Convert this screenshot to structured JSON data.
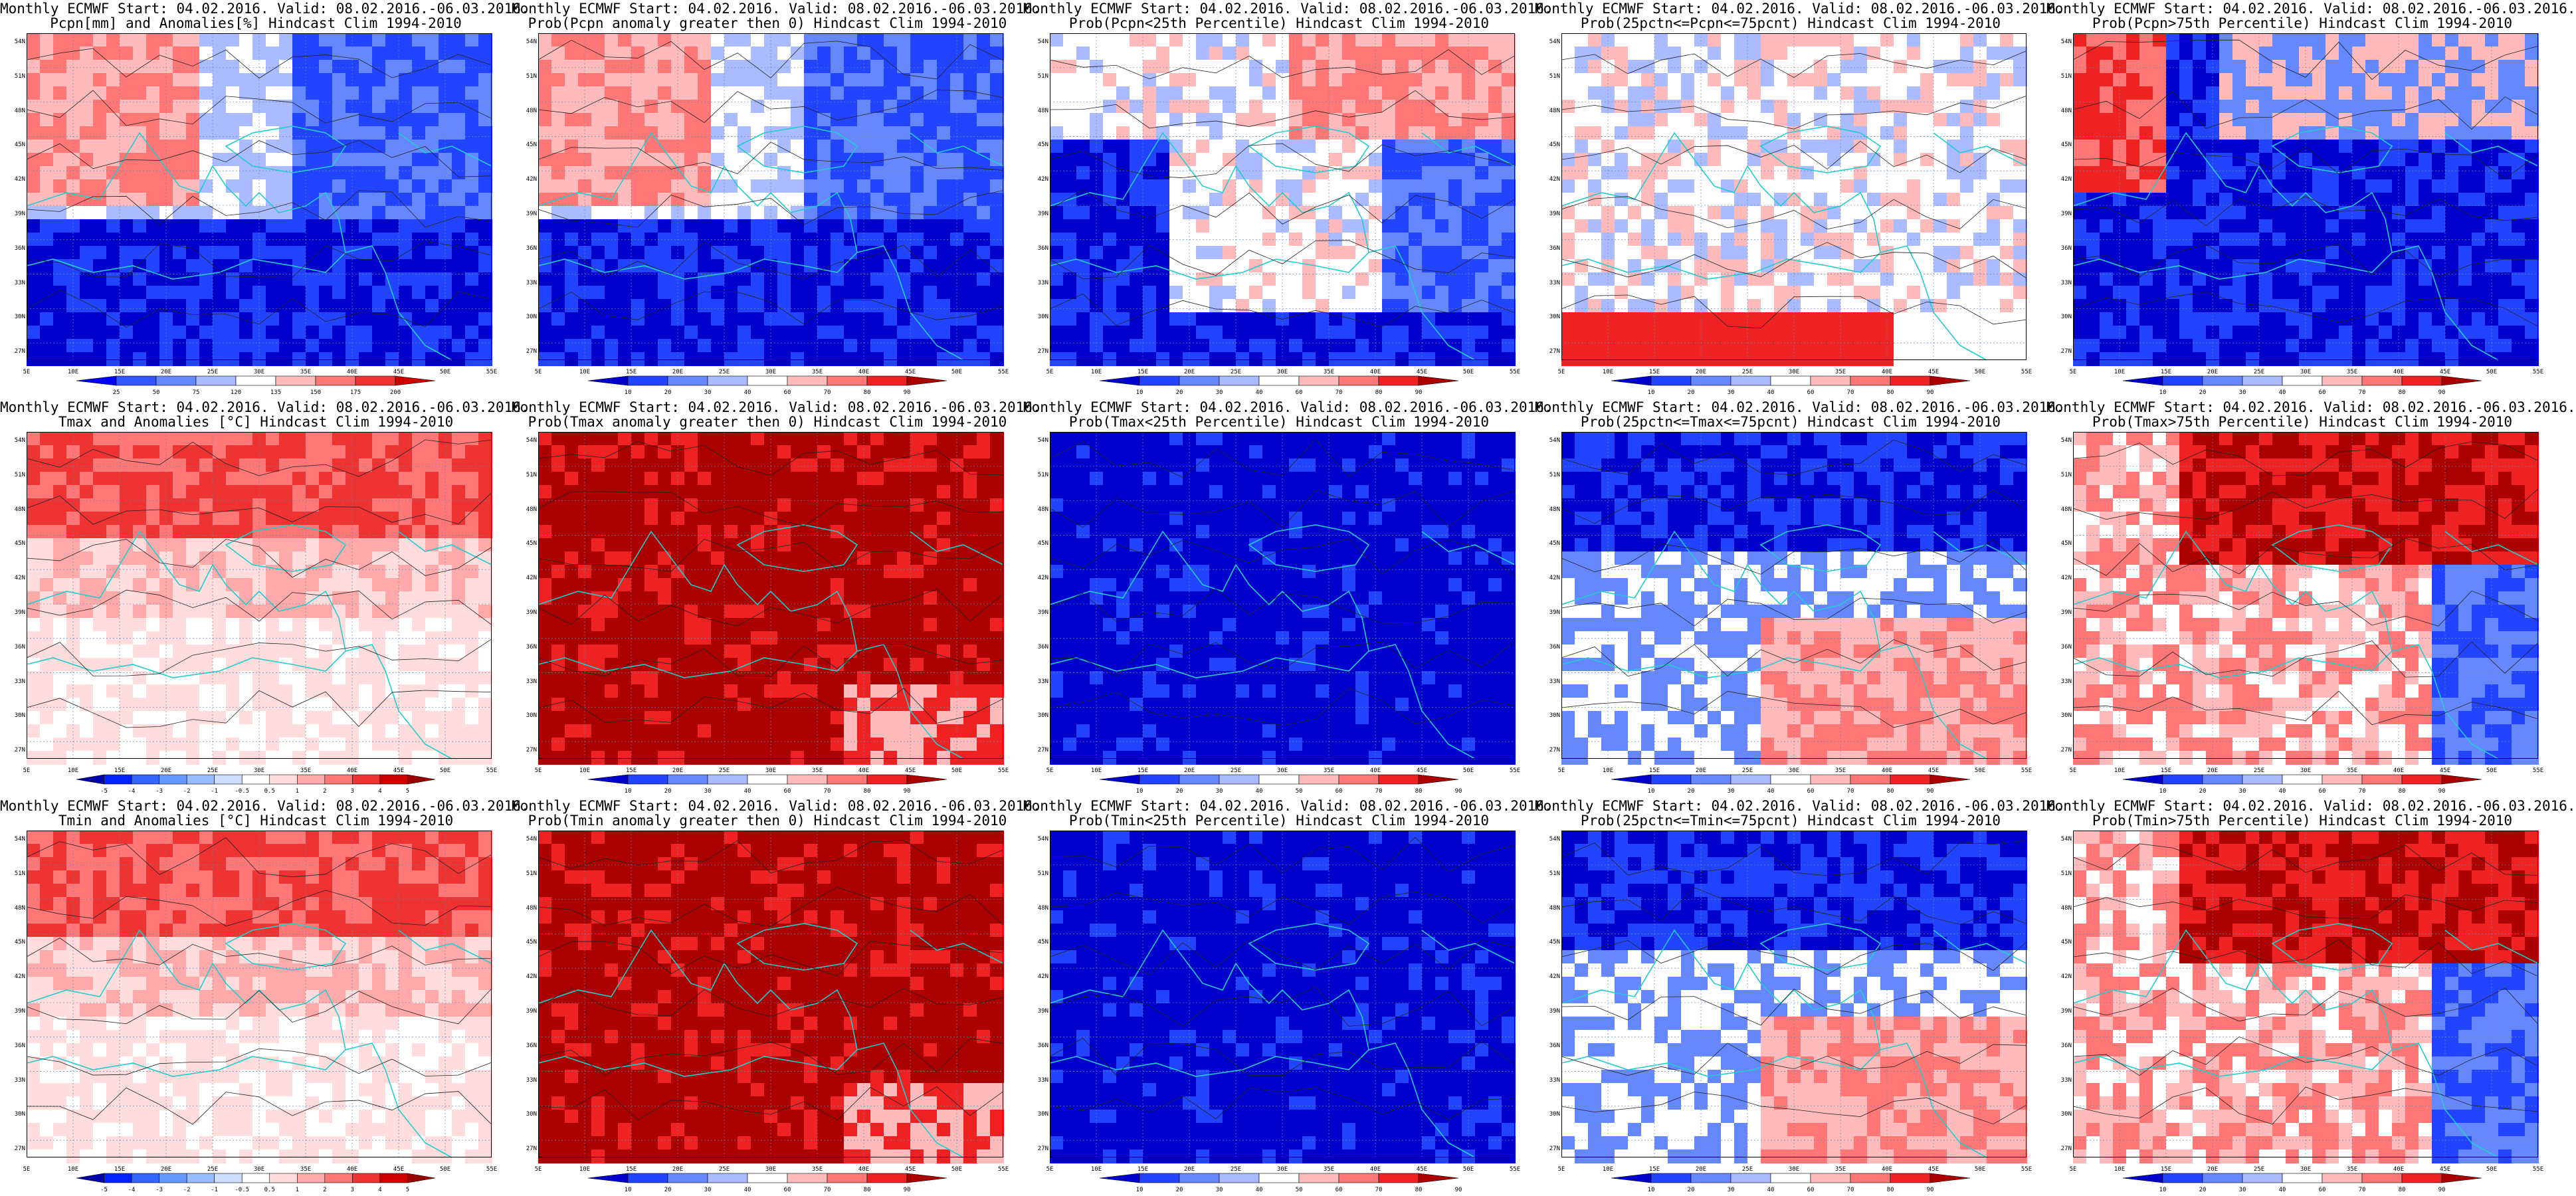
{
  "panels": [
    {
      "title1": "Monthly ECMWF Start: 04.02.2016. Valid: 08.02.2016.-06.03.2016.",
      "title2": "Pcpn[mm] and Anomalies[%] Hindcast Clim 1994-2010",
      "field": "pcpn_anom",
      "colorbar_ticks": [
        "25",
        "50",
        "75",
        "120",
        "135",
        "150",
        "175",
        "200"
      ],
      "colorbar_colors": [
        "#0000ff",
        "#3355ff",
        "#6688ff",
        "#aabbff",
        "#ffffff",
        "#ffbbbb",
        "#ff7777",
        "#ee3333",
        "#cc0000"
      ]
    },
    {
      "title1": "Monthly ECMWF Start: 04.02.2016. Valid: 08.02.2016.-06.03.2016.",
      "title2": "Prob(Pcpn anomaly greater then 0) Hindcast Clim 1994-2010",
      "field": "pcpn_gt0",
      "colorbar_ticks": [
        "10",
        "20",
        "30",
        "40",
        "60",
        "70",
        "80",
        "90"
      ],
      "colorbar_colors": [
        "#0000cc",
        "#2244ff",
        "#6688ff",
        "#aabbff",
        "#ffffff",
        "#ffbbbb",
        "#ff7777",
        "#ee2222",
        "#aa0000"
      ]
    },
    {
      "title1": "Monthly ECMWF Start: 04.02.2016. Valid: 08.02.2016.-06.03.2016.",
      "title2": "Prob(Pcpn<25th Percentile) Hindcast Clim 1994-2010",
      "field": "pcpn_lt25",
      "colorbar_ticks": [
        "10",
        "20",
        "30",
        "40",
        "60",
        "70",
        "80",
        "90"
      ],
      "colorbar_colors": [
        "#0000cc",
        "#2244ff",
        "#6688ff",
        "#aabbff",
        "#ffffff",
        "#ffbbbb",
        "#ff7777",
        "#ee2222",
        "#aa0000"
      ]
    },
    {
      "title1": "Monthly ECMWF Start: 04.02.2016. Valid: 08.02.2016.-06.03.2016.",
      "title2": "Prob(25pctn<=Pcpn<=75pcnt) Hindcast Clim 1994-2010",
      "field": "pcpn_mid",
      "colorbar_ticks": [
        "10",
        "20",
        "30",
        "40",
        "60",
        "70",
        "80",
        "90"
      ],
      "colorbar_colors": [
        "#0000cc",
        "#2244ff",
        "#6688ff",
        "#aabbff",
        "#ffffff",
        "#ffbbbb",
        "#ff7777",
        "#ee2222",
        "#aa0000"
      ]
    },
    {
      "title1": "Monthly ECMWF Start: 04.02.2016. Valid: 08.02.2016.-06.03.2016.",
      "title2": "Prob(Pcpn>75th Percentile) Hindcast Clim 1994-2010",
      "field": "pcpn_gt75",
      "colorbar_ticks": [
        "10",
        "20",
        "30",
        "40",
        "60",
        "70",
        "80",
        "90"
      ],
      "colorbar_colors": [
        "#0000cc",
        "#2244ff",
        "#6688ff",
        "#aabbff",
        "#ffffff",
        "#ffbbbb",
        "#ff7777",
        "#ee2222",
        "#aa0000"
      ]
    },
    {
      "title1": "Monthly ECMWF Start: 04.02.2016. Valid: 08.02.2016.-06.03.2016.",
      "title2": "Tmax and Anomalies [°C] Hindcast Clim 1994-2010",
      "field": "tmax_anom",
      "colorbar_ticks": [
        "-5",
        "-4",
        "-3",
        "-2",
        "-1",
        "-0.5",
        "0.5",
        "1",
        "2",
        "3",
        "4",
        "5"
      ],
      "colorbar_colors": [
        "#0000aa",
        "#0022ff",
        "#3366ff",
        "#6699ff",
        "#99bbff",
        "#ccddff",
        "#ffffff",
        "#ffdddd",
        "#ffaaaa",
        "#ff7777",
        "#ee3333",
        "#cc0000",
        "#990000"
      ]
    },
    {
      "title1": "Monthly ECMWF Start: 04.02.2016. Valid: 08.02.2016.-06.03.2016.",
      "title2": "Prob(Tmax anomaly greater then 0) Hindcast Clim 1994-2010",
      "field": "tmax_gt0",
      "colorbar_ticks": [
        "10",
        "20",
        "30",
        "40",
        "60",
        "70",
        "80",
        "90"
      ],
      "colorbar_colors": [
        "#0000cc",
        "#2244ff",
        "#6688ff",
        "#aabbff",
        "#ffffff",
        "#ffbbbb",
        "#ff7777",
        "#ee2222",
        "#aa0000"
      ]
    },
    {
      "title1": "Monthly ECMWF Start: 04.02.2016. Valid: 08.02.2016.-06.03.2016.",
      "title2": "Prob(Tmax<25th Percentile) Hindcast Clim 1994-2010",
      "field": "tmax_lt25",
      "colorbar_ticks": [
        "10",
        "20",
        "30",
        "40",
        "50",
        "60",
        "70",
        "80",
        "90"
      ],
      "colorbar_colors": [
        "#0000cc",
        "#2244ff",
        "#6688ff",
        "#aabbff",
        "#ffffff",
        "#ffbbbb",
        "#ff7777",
        "#ee2222",
        "#aa0000"
      ]
    },
    {
      "title1": "Monthly ECMWF Start: 04.02.2016. Valid: 08.02.2016.-06.03.2016.",
      "title2": "Prob(25pctn<=Tmax<=75pcnt) Hindcast Clim 1994-2010",
      "field": "tmax_mid",
      "colorbar_ticks": [
        "10",
        "20",
        "30",
        "40",
        "60",
        "70",
        "80",
        "90"
      ],
      "colorbar_colors": [
        "#0000cc",
        "#2244ff",
        "#6688ff",
        "#aabbff",
        "#ffffff",
        "#ffbbbb",
        "#ff7777",
        "#ee2222",
        "#aa0000"
      ]
    },
    {
      "title1": "Monthly ECMWF Start: 04.02.2016. Valid: 08.02.2016.-06.03.2016.",
      "title2": "Prob(Tmax>75th Percentile) Hindcast Clim 1994-2010",
      "field": "tmax_gt75",
      "colorbar_ticks": [
        "10",
        "20",
        "30",
        "40",
        "60",
        "70",
        "80",
        "90"
      ],
      "colorbar_colors": [
        "#0000cc",
        "#2244ff",
        "#6688ff",
        "#aabbff",
        "#ffffff",
        "#ffbbbb",
        "#ff7777",
        "#ee2222",
        "#aa0000"
      ]
    },
    {
      "title1": "Monthly ECMWF Start: 04.02.2016. Valid: 08.02.2016.-06.03.2016.",
      "title2": "Tmin and Anomalies [°C] Hindcast Clim 1994-2010",
      "field": "tmin_anom",
      "colorbar_ticks": [
        "-5",
        "-4",
        "-3",
        "-2",
        "-1",
        "-0.5",
        "0.5",
        "1",
        "2",
        "3",
        "4",
        "5"
      ],
      "colorbar_colors": [
        "#0000aa",
        "#0022ff",
        "#3366ff",
        "#6699ff",
        "#99bbff",
        "#ccddff",
        "#ffffff",
        "#ffdddd",
        "#ffaaaa",
        "#ff7777",
        "#ee3333",
        "#cc0000",
        "#990000"
      ]
    },
    {
      "title1": "Monthly ECMWF Start: 04.02.2016. Valid: 08.02.2016.-06.03.2016.",
      "title2": "Prob(Tmin anomaly greater then 0) Hindcast Clim 1994-2010",
      "field": "tmin_gt0",
      "colorbar_ticks": [
        "10",
        "20",
        "30",
        "40",
        "60",
        "70",
        "80",
        "90"
      ],
      "colorbar_colors": [
        "#0000cc",
        "#2244ff",
        "#6688ff",
        "#aabbff",
        "#ffffff",
        "#ffbbbb",
        "#ff7777",
        "#ee2222",
        "#aa0000"
      ]
    },
    {
      "title1": "Monthly ECMWF Start: 04.02.2016. Valid: 08.02.2016.-06.03.2016.",
      "title2": "Prob(Tmin<25th Percentile) Hindcast Clim 1994-2010",
      "field": "tmin_lt25",
      "colorbar_ticks": [
        "10",
        "20",
        "30",
        "40",
        "50",
        "60",
        "70",
        "80",
        "90"
      ],
      "colorbar_colors": [
        "#0000cc",
        "#2244ff",
        "#6688ff",
        "#aabbff",
        "#ffffff",
        "#ffbbbb",
        "#ff7777",
        "#ee2222",
        "#aa0000"
      ]
    },
    {
      "title1": "Monthly ECMWF Start: 04.02.2016. Valid: 08.02.2016.-06.03.2016.",
      "title2": "Prob(25pctn<=Tmin<=75pcnt) Hindcast Clim 1994-2010",
      "field": "tmin_mid",
      "colorbar_ticks": [
        "10",
        "20",
        "30",
        "40",
        "60",
        "70",
        "80",
        "90"
      ],
      "colorbar_colors": [
        "#0000cc",
        "#2244ff",
        "#6688ff",
        "#aabbff",
        "#ffffff",
        "#ffbbbb",
        "#ff7777",
        "#ee2222",
        "#aa0000"
      ]
    },
    {
      "title1": "Monthly ECMWF Start: 04.02.2016. Valid: 08.02.2016.-06.03.2016.",
      "title2": "Prob(Tmin>75th Percentile) Hindcast Clim 1994-2010",
      "field": "tmin_gt75",
      "colorbar_ticks": [
        "10",
        "20",
        "30",
        "40",
        "60",
        "70",
        "80",
        "90"
      ],
      "colorbar_colors": [
        "#0000cc",
        "#2244ff",
        "#6688ff",
        "#aabbff",
        "#ffffff",
        "#ffbbbb",
        "#ff7777",
        "#ee2222",
        "#aa0000"
      ]
    }
  ],
  "lat_labels": [
    "54N",
    "51N",
    "48N",
    "45N",
    "42N",
    "39N",
    "36N",
    "33N",
    "30N",
    "27N"
  ],
  "lon_labels": [
    "5E",
    "10E",
    "15E",
    "20E",
    "25E",
    "30E",
    "35E",
    "40E",
    "45E",
    "50E",
    "55E"
  ],
  "colors": {
    "coastline": "#22cccc",
    "contour": "#222222",
    "grid": "#6688aa"
  }
}
